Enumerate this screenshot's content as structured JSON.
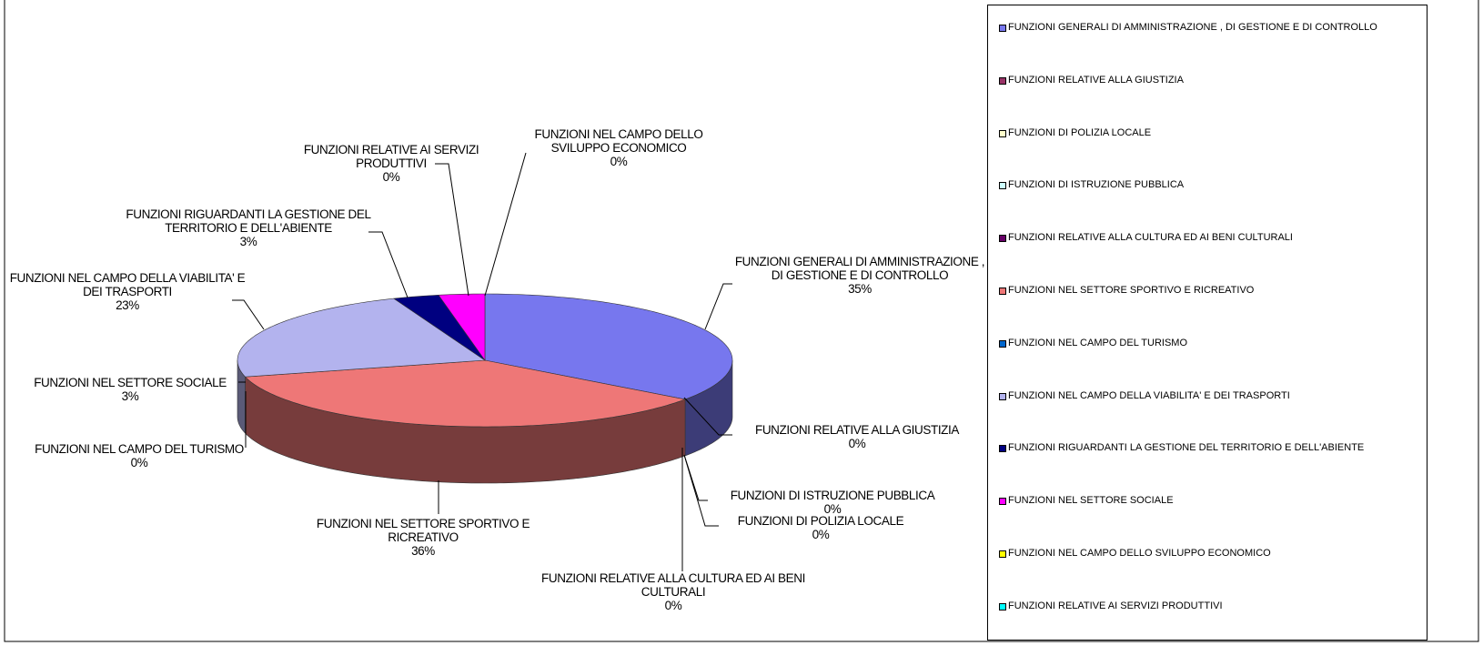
{
  "chart_data": {
    "type": "pie",
    "categories": [
      "FUNZIONI GENERALI DI AMMINISTRAZIONE , DI GESTIONE E DI CONTROLLO",
      "FUNZIONI RELATIVE ALLA GIUSTIZIA",
      "FUNZIONI DI POLIZIA LOCALE",
      "FUNZIONI DI ISTRUZIONE PUBBLICA",
      "FUNZIONI RELATIVE ALLA CULTURA ED AI BENI CULTURALI",
      "FUNZIONI NEL SETTORE SPORTIVO E RICREATIVO",
      "FUNZIONI NEL CAMPO DEL TURISMO",
      "FUNZIONI NEL CAMPO DELLA VIABILITA' E DEI TRASPORTI",
      "FUNZIONI RIGUARDANTI LA GESTIONE DEL TERRITORIO E DELL'ABIENTE",
      "FUNZIONI NEL SETTORE SOCIALE",
      "FUNZIONI NEL CAMPO DELLO SVILUPPO ECONOMICO",
      "FUNZIONI RELATIVE AI SERVIZI PRODUTTIVI"
    ],
    "values": [
      35,
      0,
      0,
      0,
      0,
      36,
      0,
      23,
      3,
      3,
      0,
      0
    ],
    "value_labels": [
      "35%",
      "0%",
      "0%",
      "0%",
      "0%",
      "36%",
      "0%",
      "23%",
      "3%",
      "3%",
      "0%",
      "0%"
    ],
    "colors": [
      "#7777ee",
      "#993366",
      "#ffffcc",
      "#ccffff",
      "#660066",
      "#ee7777",
      "#0066cc",
      "#b3b3ee",
      "#000080",
      "#ff00ff",
      "#ffff00",
      "#00ffff"
    ],
    "legend": "right"
  }
}
